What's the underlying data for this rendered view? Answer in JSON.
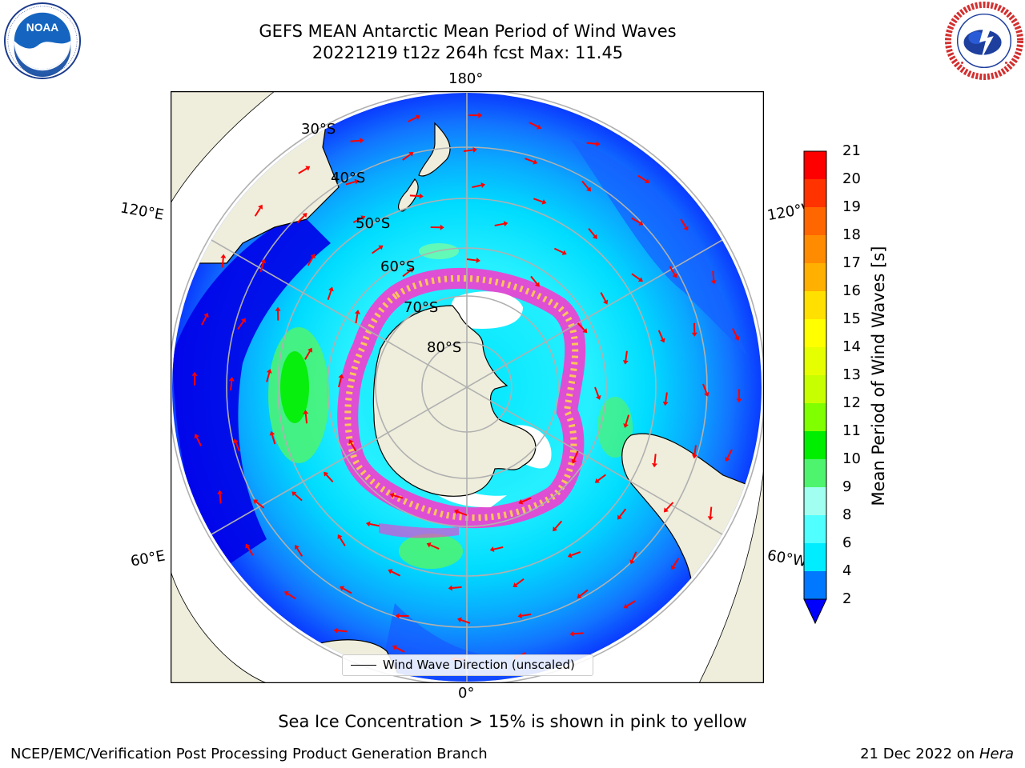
{
  "header": {
    "title_line1": "GEFS MEAN Antarctic Mean Period of Wind Waves",
    "title_line2": "20221219 t12z 264h fcst   Max: 11.45"
  },
  "logos": {
    "left": {
      "icon": "noaa-logo",
      "text_ring": "NATIONAL OCEANIC AND ATMOSPHERIC ADMINISTRATION · U.S. DEPARTMENT OF COMMERCE",
      "center_text": "NOAA"
    },
    "right": {
      "icon": "national-weather-service-logo",
      "text_ring": "NATIONAL WEATHER SERVICE"
    }
  },
  "map": {
    "projection": "south-polar-stereographic",
    "longitude_labels": {
      "top": "180°",
      "bottom": "0°",
      "upper_left": "120°E",
      "upper_right": "120°W",
      "lower_left": "60°E",
      "lower_right": "60°W"
    },
    "latitude_labels": [
      "30°S",
      "40°S",
      "50°S",
      "60°S",
      "70°S",
      "80°S"
    ],
    "colors": {
      "land": "#efeedc",
      "ocean_low": "#0000e8",
      "gridline": "#b0b0b0",
      "arrow": "#ff0000",
      "sea_ice": "#ff33cc"
    }
  },
  "colorbar": {
    "label": "Mean Period of Wind Waves [s]",
    "ticks": [
      "21",
      "20",
      "19",
      "18",
      "17",
      "16",
      "15",
      "14",
      "13",
      "12",
      "11",
      "10",
      "9",
      "8",
      "6",
      "4",
      "2"
    ],
    "colors": [
      "#ff0000",
      "#ff3300",
      "#ff6600",
      "#ff8c00",
      "#ffb000",
      "#ffe000",
      "#ffff00",
      "#e6ff00",
      "#c8ff00",
      "#80ff00",
      "#00ee00",
      "#4ff46e",
      "#a0fff0",
      "#50ffff",
      "#00ecff",
      "#0078ff"
    ],
    "extend_color": "#0000ff"
  },
  "legend": {
    "label": "Wind Wave Direction (unscaled)"
  },
  "subtitle": "Sea Ice Concentration > 15% is shown in pink to yellow",
  "footer": {
    "left": "NCEP/EMC/Verification Post Processing Product Generation Branch",
    "right_date": "21 Dec 2022 on ",
    "right_host": "Hera"
  }
}
